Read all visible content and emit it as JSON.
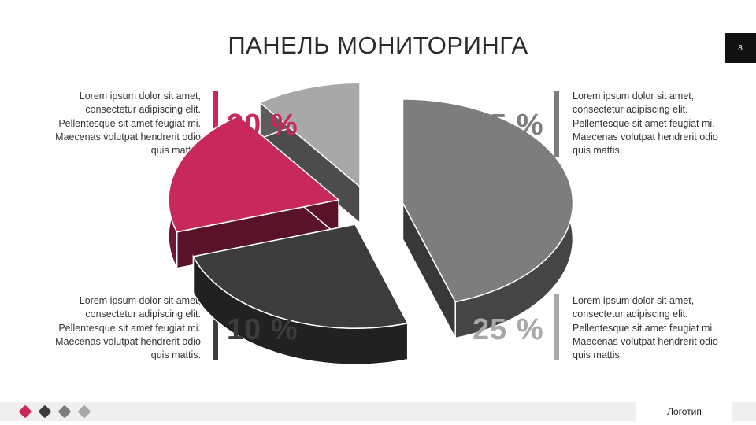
{
  "title": "ПАНЕЛЬ МОНИТОРИНГА",
  "page_number": "8",
  "logo_text": "Логотип",
  "colors": {
    "accent": "#c8285a",
    "dark": "#3c3c3c",
    "mid": "#7d7d7d",
    "light": "#a8a8a8"
  },
  "blocks": {
    "top_left": {
      "percent": "20 %",
      "text": "Lorem ipsum dolor sit amet, consectetur adipiscing elit. Pellentesque sit amet feugiat mi. Maecenas volutpat hendrerit odio quis mattis."
    },
    "bottom_left": {
      "percent": "10 %",
      "text": "Lorem ipsum dolor sit amet, consectetur adipiscing elit. Pellentesque sit amet feugiat mi. Maecenas volutpat hendrerit odio quis mattis."
    },
    "top_right": {
      "percent": "45 %",
      "text": "Lorem ipsum dolor sit amet, consectetur adipiscing elit. Pellentesque sit amet feugiat mi. Maecenas volutpat hendrerit odio quis mattis."
    },
    "bottom_right": {
      "percent": "25 %",
      "text": "Lorem ipsum dolor sit amet, consectetur adipiscing elit. Pellentesque sit amet feugiat mi. Maecenas volutpat hendrerit odio quis mattis."
    }
  },
  "chart_data": {
    "type": "pie",
    "style": "3d-exploded",
    "categories": [
      "45 %",
      "25 %",
      "20 %",
      "10 %"
    ],
    "values": [
      45,
      25,
      20,
      10
    ],
    "colors": [
      "#7d7d7d",
      "#3c3c3c",
      "#c8285a",
      "#a8a8a8"
    ]
  }
}
